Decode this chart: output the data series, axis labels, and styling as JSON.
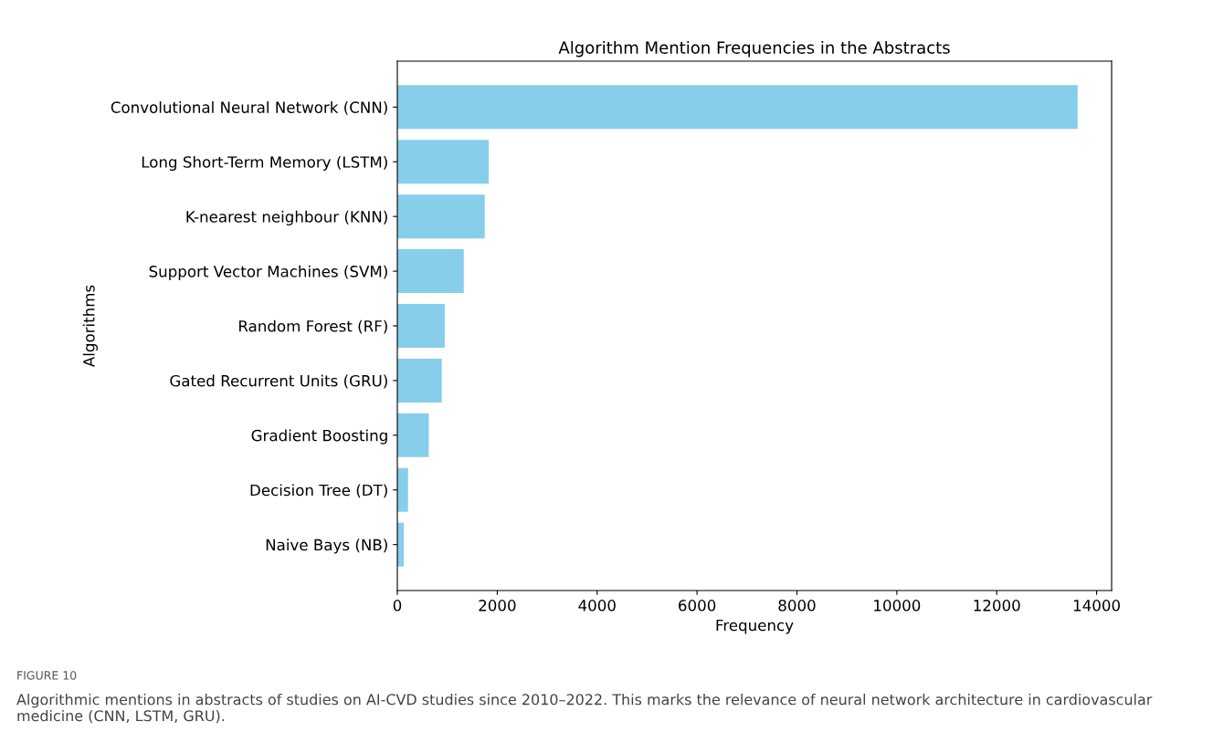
{
  "chart_data": {
    "type": "bar",
    "orientation": "horizontal",
    "title": "Algorithm Mention Frequencies in the Abstracts",
    "xlabel": "Frequency",
    "ylabel": "Algorithms",
    "categories": [
      "Convolutional Neural Network (CNN)",
      "Long Short-Term Memory (LSTM)",
      "K-nearest neighbour (KNN)",
      "Support Vector Machines (SVM)",
      "Random Forest (RF)",
      "Gated Recurrent Units (GRU)",
      "Gradient Boosting",
      "Decision Tree (DT)",
      "Naive Bays (NB)"
    ],
    "values": [
      13620,
      1830,
      1750,
      1330,
      950,
      890,
      630,
      215,
      130
    ],
    "color": "#87ceeb",
    "xlim": [
      0,
      14300
    ],
    "xticks": [
      0,
      2000,
      4000,
      6000,
      8000,
      10000,
      12000,
      14000
    ],
    "grid": false,
    "annotations": [
      "FIGURE 10",
      "Algorithmic mentions in abstracts of studies on AI-CVD studies since 2010–2022. This marks the relevance of neural network architecture in cardiovascular medicine (CNN, LSTM, GRU)."
    ]
  }
}
